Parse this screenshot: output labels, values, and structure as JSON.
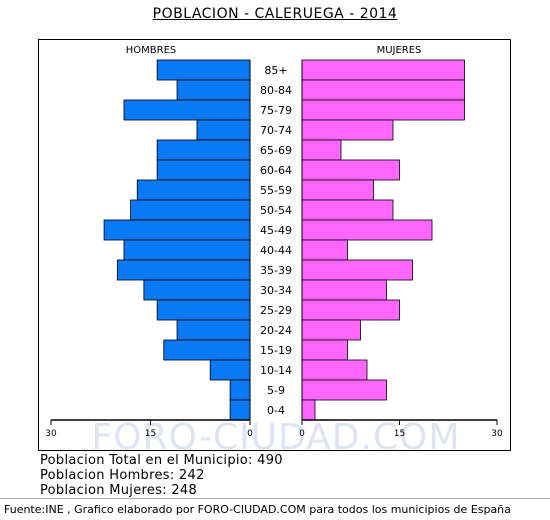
{
  "title": "POBLACION - CALERUEGA - 2014",
  "chart_data": {
    "type": "bar",
    "orientation": "horizontal",
    "subtype": "population-pyramid",
    "left_label": "HOMBRES",
    "right_label": "MUJERES",
    "categories": [
      "85+",
      "80-84",
      "75-79",
      "70-74",
      "65-69",
      "60-64",
      "55-59",
      "50-54",
      "45-49",
      "40-44",
      "35-39",
      "30-34",
      "25-29",
      "20-24",
      "15-19",
      "10-14",
      "5-9",
      "0-4"
    ],
    "series": [
      {
        "name": "HOMBRES",
        "color": "#0a79f5",
        "values": [
          14,
          11,
          19,
          8,
          14,
          14,
          17,
          18,
          22,
          19,
          20,
          16,
          14,
          11,
          13,
          6,
          3,
          3
        ]
      },
      {
        "name": "MUJERES",
        "color": "#ff66ff",
        "values": [
          25,
          25,
          25,
          14,
          6,
          15,
          11,
          14,
          20,
          7,
          17,
          13,
          15,
          9,
          7,
          10,
          13,
          2
        ]
      }
    ],
    "x_ticks_left": [
      "30",
      "15",
      "0"
    ],
    "x_ticks_right": [
      "0",
      "15",
      "30"
    ],
    "xlim": [
      0,
      30
    ],
    "watermark": "FORO-CIUDAD.COM"
  },
  "stats": {
    "total": "Poblacion Total en el Municipio: 490",
    "men": "Poblacion Hombres: 242",
    "women": "Poblacion Mujeres: 248"
  },
  "footer": "Fuente:INE , Grafico elaborado por FORO-CIUDAD.COM para todos los municipios de España"
}
